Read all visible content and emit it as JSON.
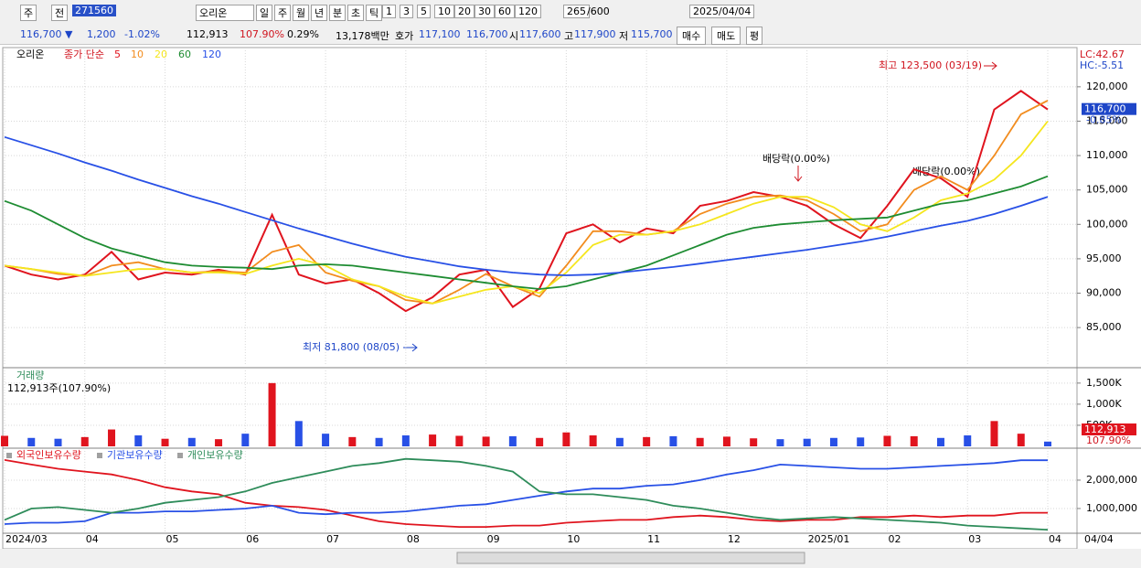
{
  "toolbar": {
    "period": "주",
    "prev": "전",
    "code": "271560",
    "name": "오리온",
    "intervals": [
      "일",
      "주",
      "월",
      "년",
      "분",
      "초",
      "틱"
    ],
    "minutes": [
      "1",
      "3",
      "5",
      "10",
      "20",
      "30",
      "60",
      "120"
    ],
    "count": "265",
    "total": "/600",
    "date": "2025/04/04"
  },
  "quote": {
    "price": "116,700 ▼",
    "change": "1,200",
    "change_pct": "-1.02%",
    "volume": "112,913",
    "volume_pct": "107.90%",
    "turnover": "0.29%",
    "amount": "13,178백만",
    "ask_label": "호가",
    "ask": "117,100",
    "bid": "116,700",
    "open_label": "시",
    "open": "117,600",
    "high_label": "고",
    "high": "117,900",
    "low_label": "저",
    "low": "115,700",
    "buy": "매수",
    "sell": "매도",
    "avg": "평"
  },
  "chart_data": [
    {
      "type": "line",
      "title": "오리온",
      "legend_prefix": "종가 단순",
      "lc": "LC:42.67",
      "hc": "HC:-5.51",
      "last_label": "116,700",
      "last_change": "-0.85%",
      "annotations": [
        "최고 123,500 (03/19)",
        "최저 81,800 (08/05)",
        "배당락(0.00%)",
        "배당락(0.00%)"
      ],
      "ylim": [
        79700,
        125300
      ],
      "yticks": [
        {
          "value": 85000,
          "label": "85,000"
        },
        {
          "value": 90000,
          "label": "90,000"
        },
        {
          "value": 95000,
          "label": "95,000"
        },
        {
          "value": 100000,
          "label": "100,000"
        },
        {
          "value": 105000,
          "label": "105,000"
        },
        {
          "value": 110000,
          "label": "110,000"
        },
        {
          "value": 115000,
          "label": "115,000"
        },
        {
          "value": 120000,
          "label": "120,000"
        }
      ],
      "series": [
        {
          "name": "5",
          "color": "#e0141e",
          "values": [
            94000,
            92700,
            92000,
            92700,
            96000,
            92000,
            93000,
            92700,
            93400,
            92700,
            101400,
            92700,
            91400,
            92000,
            90000,
            87400,
            89400,
            92700,
            93400,
            88000,
            90700,
            98700,
            100000,
            97400,
            99400,
            98700,
            102700,
            103400,
            104700,
            104000,
            102700,
            100000,
            98000,
            102700,
            108000,
            106700,
            104000,
            116700,
            119400,
            116700
          ]
        },
        {
          "name": "10",
          "color": "#f28c1e",
          "values": [
            94000,
            93500,
            92800,
            92500,
            94000,
            94500,
            93500,
            93000,
            93200,
            93000,
            96000,
            97000,
            93000,
            91800,
            91000,
            89000,
            88500,
            90500,
            92800,
            91000,
            89500,
            94000,
            99000,
            99000,
            98500,
            99000,
            101500,
            103000,
            104000,
            104200,
            103500,
            101500,
            99000,
            100000,
            105000,
            107000,
            105000,
            110000,
            116000,
            118000
          ]
        },
        {
          "name": "20",
          "color": "#f5e61e",
          "values": [
            94000,
            93500,
            93000,
            92500,
            93000,
            93500,
            93500,
            93000,
            93000,
            92800,
            94000,
            95000,
            94000,
            92000,
            91000,
            89500,
            88500,
            89500,
            90500,
            91000,
            90000,
            93000,
            97000,
            98500,
            98500,
            99000,
            100000,
            101500,
            103000,
            104000,
            104000,
            102500,
            100000,
            99000,
            101000,
            103500,
            104500,
            106500,
            110000,
            115000
          ]
        },
        {
          "name": "60",
          "color": "#1e8c32",
          "values": [
            103400,
            102000,
            100000,
            98000,
            96500,
            95500,
            94500,
            94000,
            93800,
            93700,
            93500,
            94000,
            94200,
            94000,
            93500,
            93000,
            92500,
            92000,
            91500,
            91000,
            90600,
            91000,
            92000,
            93000,
            94000,
            95500,
            97000,
            98500,
            99500,
            100000,
            100300,
            100600,
            100800,
            101000,
            102000,
            103000,
            103500,
            104500,
            105500,
            107000
          ]
        },
        {
          "name": "120",
          "color": "#2850e6",
          "values": [
            112700,
            111500,
            110300,
            109000,
            107800,
            106500,
            105300,
            104100,
            103000,
            101800,
            100600,
            99400,
            98300,
            97200,
            96200,
            95300,
            94600,
            93900,
            93400,
            93000,
            92700,
            92600,
            92700,
            93000,
            93400,
            93800,
            94300,
            94800,
            95300,
            95800,
            96300,
            96900,
            97500,
            98200,
            99000,
            99800,
            100500,
            101500,
            102700,
            104000
          ]
        }
      ]
    },
    {
      "type": "bar",
      "title": "거래량",
      "subtitle": "112,913주(107.90%)",
      "last_label": "112,913",
      "last_pct": "107.90%",
      "ylim": [
        0,
        1800000
      ],
      "yticks": [
        {
          "value": 500000,
          "label": "500K"
        },
        {
          "value": 1000000,
          "label": "1,000K"
        },
        {
          "value": 1500000,
          "label": "1,500K"
        }
      ],
      "values": [
        250000,
        200000,
        180000,
        220000,
        400000,
        260000,
        180000,
        200000,
        170000,
        300000,
        1500000,
        600000,
        300000,
        220000,
        200000,
        260000,
        280000,
        250000,
        230000,
        240000,
        200000,
        330000,
        260000,
        200000,
        220000,
        240000,
        200000,
        230000,
        190000,
        170000,
        180000,
        200000,
        210000,
        250000,
        240000,
        200000,
        260000,
        600000,
        300000,
        112913
      ]
    },
    {
      "type": "line",
      "end_label": "04/04",
      "ylim": [
        160000,
        3030000
      ],
      "yticks": [
        {
          "value": 1000000,
          "label": "1,000,000"
        },
        {
          "value": 2000000,
          "label": "2,000,000"
        }
      ],
      "categories": [
        "2024/03",
        null,
        null,
        "04",
        null,
        null,
        "05",
        null,
        null,
        "06",
        null,
        null,
        "07",
        null,
        null,
        "08",
        null,
        null,
        "09",
        null,
        null,
        "10",
        null,
        null,
        "11",
        null,
        null,
        "12",
        null,
        null,
        "2025/01",
        null,
        null,
        "02",
        null,
        null,
        "03",
        null,
        null,
        "04"
      ],
      "series": [
        {
          "name": "외국인보유수량",
          "color": "#e0141e",
          "values": [
            2710000,
            2550000,
            2400000,
            2300000,
            2200000,
            2000000,
            1750000,
            1600000,
            1500000,
            1200000,
            1100000,
            1050000,
            950000,
            750000,
            550000,
            450000,
            400000,
            350000,
            350000,
            400000,
            400000,
            500000,
            550000,
            600000,
            600000,
            700000,
            750000,
            700000,
            600000,
            550000,
            600000,
            600000,
            700000,
            700000,
            750000,
            700000,
            750000,
            750000,
            850000,
            850000
          ]
        },
        {
          "name": "기관보유수량",
          "color": "#2850e6",
          "values": [
            450000,
            500000,
            500000,
            550000,
            850000,
            850000,
            900000,
            900000,
            950000,
            1000000,
            1100000,
            850000,
            800000,
            850000,
            850000,
            900000,
            1000000,
            1100000,
            1150000,
            1300000,
            1450000,
            1600000,
            1700000,
            1700000,
            1800000,
            1850000,
            2000000,
            2200000,
            2350000,
            2550000,
            2500000,
            2450000,
            2400000,
            2400000,
            2450000,
            2500000,
            2550000,
            2600000,
            2700000,
            2700000
          ]
        },
        {
          "name": "개인보유수량",
          "color": "#2e8c5a",
          "values": [
            600000,
            1000000,
            1050000,
            950000,
            850000,
            1000000,
            1200000,
            1300000,
            1400000,
            1600000,
            1900000,
            2100000,
            2300000,
            2500000,
            2600000,
            2750000,
            2700000,
            2650000,
            2500000,
            2300000,
            1600000,
            1500000,
            1500000,
            1400000,
            1300000,
            1100000,
            1000000,
            850000,
            700000,
            600000,
            650000,
            700000,
            650000,
            600000,
            550000,
            500000,
            400000,
            350000,
            300000,
            250000
          ]
        }
      ]
    }
  ]
}
